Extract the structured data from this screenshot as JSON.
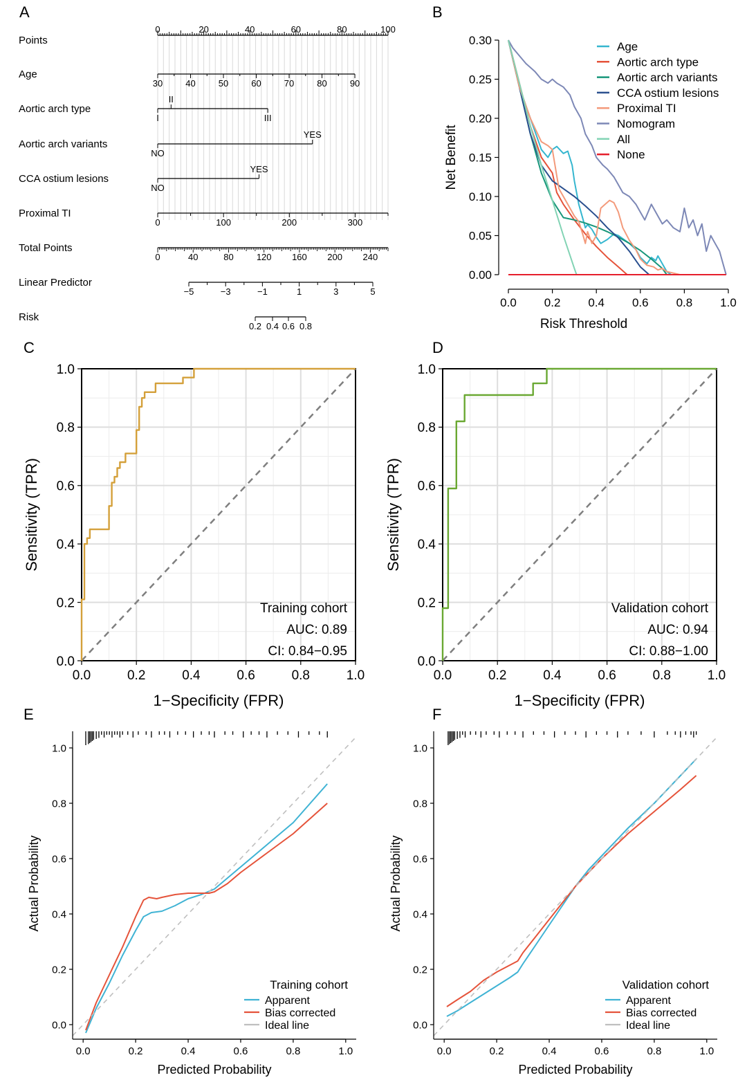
{
  "panel_labels": [
    "A",
    "B",
    "C",
    "D",
    "E",
    "F"
  ],
  "chart_data": [
    {
      "panel": "A",
      "type": "nomogram",
      "rows": [
        {
          "label": "Points",
          "ticks": [
            "0",
            "20",
            "40",
            "60",
            "80",
            "100"
          ],
          "min": 0,
          "max": 100,
          "minor": 1
        },
        {
          "label": "Age",
          "ticks": [
            "30",
            "40",
            "50",
            "60",
            "70",
            "80",
            "90"
          ],
          "min": 30,
          "max": 90,
          "scale_points": [
            0,
            85.6
          ]
        },
        {
          "label": "Aortic arch type",
          "levels": [
            {
              "name": "I",
              "points": 0
            },
            {
              "name": "II",
              "points": 5.8
            },
            {
              "name": "III",
              "points": 47.8
            }
          ]
        },
        {
          "label": "Aortic arch variants",
          "levels": [
            {
              "name": "NO",
              "points": 0
            },
            {
              "name": "YES",
              "points": 67.2
            }
          ]
        },
        {
          "label": "CCA ostium lesions",
          "levels": [
            {
              "name": "NO",
              "points": 0
            },
            {
              "name": "YES",
              "points": 44
            }
          ]
        },
        {
          "label": "Proximal TI",
          "ticks": [
            "0",
            "100",
            "200",
            "300"
          ],
          "min": 0,
          "max": 350,
          "scale_points": [
            0,
            100
          ]
        },
        {
          "label": "Total Points",
          "ticks": [
            "0",
            "40",
            "80",
            "120",
            "160",
            "200",
            "240"
          ],
          "min": 0,
          "max": 260
        },
        {
          "label": "Linear Predictor",
          "ticks": [
            "−5",
            "−3",
            "−1",
            "1",
            "3",
            "5"
          ],
          "min": -5,
          "max": 5
        },
        {
          "label": "Risk",
          "ticks": [
            "0.2",
            "0.4",
            "0.6",
            "0.8"
          ]
        }
      ]
    },
    {
      "panel": "B",
      "type": "line",
      "xlabel": "Risk Threshold",
      "ylabel": "Net Benefit",
      "xlim": [
        0,
        1
      ],
      "ylim": [
        0,
        0.3
      ],
      "xticks": [
        "0.0",
        "0.2",
        "0.4",
        "0.6",
        "0.8",
        "1.0"
      ],
      "yticks": [
        "0.00",
        "0.05",
        "0.10",
        "0.15",
        "0.20",
        "0.25",
        "0.30"
      ],
      "legend_position": "top-right",
      "series": [
        {
          "name": "Age",
          "color": "#35b6cf",
          "x": [
            0,
            0.05,
            0.1,
            0.15,
            0.18,
            0.2,
            0.22,
            0.25,
            0.27,
            0.29,
            0.3,
            0.32,
            0.35,
            0.36,
            0.38,
            0.4,
            0.42,
            0.45,
            0.48,
            0.5,
            0.52,
            0.55,
            0.58,
            0.6,
            0.63,
            0.65,
            0.67,
            0.68,
            0.7,
            0.72,
            0.74
          ],
          "y": [
            0.3,
            0.24,
            0.2,
            0.16,
            0.15,
            0.16,
            0.164,
            0.155,
            0.158,
            0.14,
            0.12,
            0.09,
            0.06,
            0.064,
            0.058,
            0.048,
            0.04,
            0.045,
            0.052,
            0.05,
            0.046,
            0.04,
            0.032,
            0.022,
            0.014,
            0.022,
            0.018,
            0.024,
            0.014,
            0.004,
            0
          ]
        },
        {
          "name": "Aortic arch type",
          "color": "#e5533a",
          "x": [
            0,
            0.05,
            0.1,
            0.15,
            0.2,
            0.22,
            0.25,
            0.3,
            0.35,
            0.4,
            0.45,
            0.5,
            0.54
          ],
          "y": [
            0.3,
            0.245,
            0.19,
            0.15,
            0.13,
            0.105,
            0.09,
            0.07,
            0.052,
            0.036,
            0.022,
            0.01,
            0
          ]
        },
        {
          "name": "Aortic arch variants",
          "color": "#17967a",
          "x": [
            0,
            0.05,
            0.1,
            0.15,
            0.2,
            0.25,
            0.3,
            0.35,
            0.4,
            0.45,
            0.5,
            0.55,
            0.6,
            0.65,
            0.7,
            0.72
          ],
          "y": [
            0.3,
            0.24,
            0.18,
            0.13,
            0.095,
            0.073,
            0.07,
            0.066,
            0.061,
            0.055,
            0.048,
            0.04,
            0.031,
            0.02,
            0.008,
            0
          ]
        },
        {
          "name": "CCA ostium lesions",
          "color": "#2a4f8e",
          "x": [
            0,
            0.05,
            0.1,
            0.15,
            0.2,
            0.22,
            0.25,
            0.3,
            0.35,
            0.4,
            0.45,
            0.5,
            0.55,
            0.58,
            0.6,
            0.64
          ],
          "y": [
            0.3,
            0.24,
            0.18,
            0.14,
            0.12,
            0.116,
            0.11,
            0.1,
            0.088,
            0.075,
            0.06,
            0.047,
            0.03,
            0.018,
            0.01,
            0
          ]
        },
        {
          "name": "Proximal TI",
          "color": "#f39a7b",
          "x": [
            0,
            0.05,
            0.1,
            0.15,
            0.18,
            0.2,
            0.23,
            0.25,
            0.27,
            0.3,
            0.32,
            0.34,
            0.35,
            0.36,
            0.38,
            0.4,
            0.42,
            0.44,
            0.46,
            0.48,
            0.5,
            0.52,
            0.55,
            0.58,
            0.6,
            0.63,
            0.66,
            0.68,
            0.7,
            0.72,
            0.75,
            0.78
          ],
          "y": [
            0.3,
            0.24,
            0.2,
            0.17,
            0.165,
            0.16,
            0.11,
            0.1,
            0.09,
            0.075,
            0.068,
            0.05,
            0.04,
            0.055,
            0.04,
            0.05,
            0.085,
            0.09,
            0.095,
            0.092,
            0.08,
            0.06,
            0.044,
            0.032,
            0.02,
            0.012,
            0.01,
            0.006,
            0.008,
            0.004,
            0.002,
            0
          ]
        },
        {
          "name": "Nomogram",
          "color": "#7d88b6",
          "x": [
            0,
            0.02,
            0.05,
            0.08,
            0.1,
            0.12,
            0.15,
            0.18,
            0.2,
            0.22,
            0.25,
            0.28,
            0.3,
            0.33,
            0.35,
            0.38,
            0.4,
            0.43,
            0.45,
            0.48,
            0.5,
            0.52,
            0.55,
            0.58,
            0.6,
            0.62,
            0.65,
            0.68,
            0.7,
            0.72,
            0.75,
            0.78,
            0.8,
            0.82,
            0.84,
            0.86,
            0.88,
            0.9,
            0.92,
            0.94,
            0.96,
            0.98,
            0.99
          ],
          "y": [
            0.3,
            0.29,
            0.28,
            0.27,
            0.265,
            0.26,
            0.25,
            0.245,
            0.25,
            0.245,
            0.24,
            0.23,
            0.215,
            0.2,
            0.18,
            0.165,
            0.15,
            0.14,
            0.135,
            0.125,
            0.115,
            0.105,
            0.1,
            0.09,
            0.08,
            0.07,
            0.09,
            0.075,
            0.065,
            0.07,
            0.06,
            0.055,
            0.085,
            0.06,
            0.07,
            0.05,
            0.065,
            0.03,
            0.05,
            0.04,
            0.03,
            0.01,
            0
          ]
        },
        {
          "name": "All",
          "color": "#82d3b4",
          "x": [
            0,
            0.05,
            0.1,
            0.15,
            0.2,
            0.25,
            0.3,
            0.31
          ],
          "y": [
            0.3,
            0.245,
            0.19,
            0.14,
            0.095,
            0.05,
            0.008,
            0
          ]
        },
        {
          "name": "None",
          "color": "#e51e2b",
          "x": [
            0,
            0.99
          ],
          "y": [
            0,
            0
          ]
        }
      ]
    },
    {
      "panel": "C",
      "type": "line",
      "xlabel": "1−Specificity (FPR)",
      "ylabel": "Sensitivity (TPR)",
      "xlim": [
        0,
        1
      ],
      "ylim": [
        0,
        1
      ],
      "xticks": [
        "0.0",
        "0.2",
        "0.4",
        "0.6",
        "0.8",
        "1.0"
      ],
      "yticks": [
        "0.0",
        "0.2",
        "0.4",
        "0.6",
        "0.8",
        "1.0"
      ],
      "annotations": [
        "Training cohort",
        "AUC: 0.89",
        "CI: 0.84−0.95"
      ],
      "diagonal": true,
      "series": [
        {
          "color": "#d4a03a",
          "x": [
            0,
            0,
            0.01,
            0.01,
            0.02,
            0.02,
            0.03,
            0.03,
            0.04,
            0.04,
            0.1,
            0.1,
            0.11,
            0.11,
            0.12,
            0.12,
            0.13,
            0.13,
            0.14,
            0.14,
            0.16,
            0.16,
            0.2,
            0.2,
            0.21,
            0.21,
            0.22,
            0.22,
            0.23,
            0.23,
            0.27,
            0.27,
            0.37,
            0.37,
            0.41,
            0.41,
            1.0
          ],
          "y": [
            0,
            0.21,
            0.21,
            0.4,
            0.4,
            0.42,
            0.42,
            0.45,
            0.45,
            0.45,
            0.45,
            0.53,
            0.53,
            0.61,
            0.61,
            0.63,
            0.63,
            0.66,
            0.66,
            0.68,
            0.68,
            0.71,
            0.71,
            0.79,
            0.79,
            0.87,
            0.87,
            0.9,
            0.9,
            0.92,
            0.92,
            0.95,
            0.95,
            0.97,
            0.97,
            1.0,
            1.0
          ]
        }
      ]
    },
    {
      "panel": "D",
      "type": "line",
      "xlabel": "1−Specificity (FPR)",
      "ylabel": "Sensitivity (TPR)",
      "xlim": [
        0,
        1
      ],
      "ylim": [
        0,
        1
      ],
      "xticks": [
        "0.0",
        "0.2",
        "0.4",
        "0.6",
        "0.8",
        "1.0"
      ],
      "yticks": [
        "0.0",
        "0.2",
        "0.4",
        "0.6",
        "0.8",
        "1.0"
      ],
      "annotations": [
        "Validation cohort",
        "AUC: 0.94",
        "CI: 0.88−1.00"
      ],
      "diagonal": true,
      "series": [
        {
          "color": "#6aa832",
          "x": [
            0,
            0,
            0.02,
            0.02,
            0.05,
            0.05,
            0.08,
            0.08,
            0.33,
            0.33,
            0.38,
            0.38,
            1.0
          ],
          "y": [
            0,
            0.18,
            0.18,
            0.59,
            0.59,
            0.82,
            0.82,
            0.91,
            0.91,
            0.95,
            0.95,
            1.0,
            1.0
          ]
        }
      ]
    },
    {
      "panel": "E",
      "type": "line",
      "xlabel": "Predicted Probability",
      "ylabel": "Actual Probability",
      "xlim": [
        -0.04,
        1.04
      ],
      "ylim": [
        -0.04,
        1.06
      ],
      "xticks": [
        "0.0",
        "0.2",
        "0.4",
        "0.6",
        "0.8",
        "1.0"
      ],
      "yticks": [
        "0.0",
        "0.2",
        "0.4",
        "0.6",
        "0.8",
        "1.0"
      ],
      "legend_title": "Training cohort",
      "legend_position": "bottom-right",
      "rug": [
        0.01,
        0.02,
        0.025,
        0.03,
        0.035,
        0.04,
        0.05,
        0.06,
        0.07,
        0.08,
        0.09,
        0.1,
        0.11,
        0.12,
        0.13,
        0.14,
        0.15,
        0.17,
        0.19,
        0.21,
        0.24,
        0.26,
        0.29,
        0.31,
        0.33,
        0.36,
        0.39,
        0.42,
        0.45,
        0.48,
        0.5,
        0.54,
        0.57,
        0.61,
        0.64,
        0.67,
        0.7,
        0.74,
        0.78,
        0.82,
        0.86,
        0.9,
        0.93
      ],
      "series": [
        {
          "name": "Apparent",
          "color": "#3fb3d4",
          "x": [
            0.01,
            0.05,
            0.1,
            0.15,
            0.2,
            0.23,
            0.26,
            0.3,
            0.35,
            0.4,
            0.45,
            0.5,
            0.55,
            0.6,
            0.7,
            0.8,
            0.93
          ],
          "y": [
            -0.03,
            0.06,
            0.15,
            0.25,
            0.34,
            0.39,
            0.405,
            0.41,
            0.43,
            0.455,
            0.47,
            0.49,
            0.53,
            0.57,
            0.65,
            0.73,
            0.87
          ]
        },
        {
          "name": "Bias corrected",
          "color": "#e5533a",
          "x": [
            0.01,
            0.05,
            0.1,
            0.15,
            0.2,
            0.23,
            0.25,
            0.28,
            0.3,
            0.35,
            0.4,
            0.45,
            0.48,
            0.5,
            0.55,
            0.6,
            0.7,
            0.8,
            0.93
          ],
          "y": [
            -0.02,
            0.08,
            0.18,
            0.28,
            0.39,
            0.45,
            0.46,
            0.455,
            0.46,
            0.47,
            0.475,
            0.475,
            0.475,
            0.48,
            0.51,
            0.55,
            0.62,
            0.69,
            0.8
          ]
        },
        {
          "name": "Ideal line",
          "color": "#bfbfbf",
          "dashed": true,
          "x": [
            -0.04,
            1.04
          ],
          "y": [
            -0.04,
            1.04
          ]
        }
      ]
    },
    {
      "panel": "F",
      "type": "line",
      "xlabel": "Predicted Probability",
      "ylabel": "Actual Probability",
      "xlim": [
        -0.04,
        1.04
      ],
      "ylim": [
        -0.04,
        1.06
      ],
      "xticks": [
        "0.0",
        "0.2",
        "0.4",
        "0.6",
        "0.8",
        "1.0"
      ],
      "yticks": [
        "0.0",
        "0.2",
        "0.4",
        "0.6",
        "0.8",
        "1.0"
      ],
      "legend_title": "Validation cohort",
      "legend_position": "bottom-right",
      "rug": [
        0.015,
        0.02,
        0.025,
        0.03,
        0.035,
        0.04,
        0.05,
        0.06,
        0.07,
        0.08,
        0.1,
        0.12,
        0.14,
        0.16,
        0.19,
        0.21,
        0.24,
        0.27,
        0.3,
        0.34,
        0.38,
        0.42,
        0.46,
        0.5,
        0.54,
        0.58,
        0.62,
        0.66,
        0.7,
        0.75,
        0.8,
        0.85,
        0.88,
        0.9,
        0.92,
        0.94,
        0.95,
        0.96
      ],
      "series": [
        {
          "name": "Apparent",
          "color": "#3fb3d4",
          "x": [
            0.01,
            0.05,
            0.1,
            0.15,
            0.2,
            0.25,
            0.28,
            0.3,
            0.35,
            0.4,
            0.45,
            0.5,
            0.55,
            0.6,
            0.7,
            0.8,
            0.9,
            0.96
          ],
          "y": [
            0.03,
            0.05,
            0.08,
            0.11,
            0.14,
            0.17,
            0.19,
            0.22,
            0.29,
            0.36,
            0.43,
            0.5,
            0.56,
            0.61,
            0.71,
            0.8,
            0.9,
            0.96
          ]
        },
        {
          "name": "Bias corrected",
          "color": "#e5533a",
          "x": [
            0.01,
            0.05,
            0.1,
            0.15,
            0.2,
            0.25,
            0.28,
            0.3,
            0.35,
            0.4,
            0.45,
            0.5,
            0.55,
            0.6,
            0.7,
            0.8,
            0.9,
            0.96
          ],
          "y": [
            0.065,
            0.09,
            0.12,
            0.16,
            0.19,
            0.215,
            0.23,
            0.26,
            0.32,
            0.38,
            0.44,
            0.5,
            0.55,
            0.6,
            0.69,
            0.77,
            0.85,
            0.9
          ]
        },
        {
          "name": "Ideal line",
          "color": "#bfbfbf",
          "dashed": true,
          "x": [
            -0.04,
            1.04
          ],
          "y": [
            -0.04,
            1.04
          ]
        }
      ]
    }
  ]
}
